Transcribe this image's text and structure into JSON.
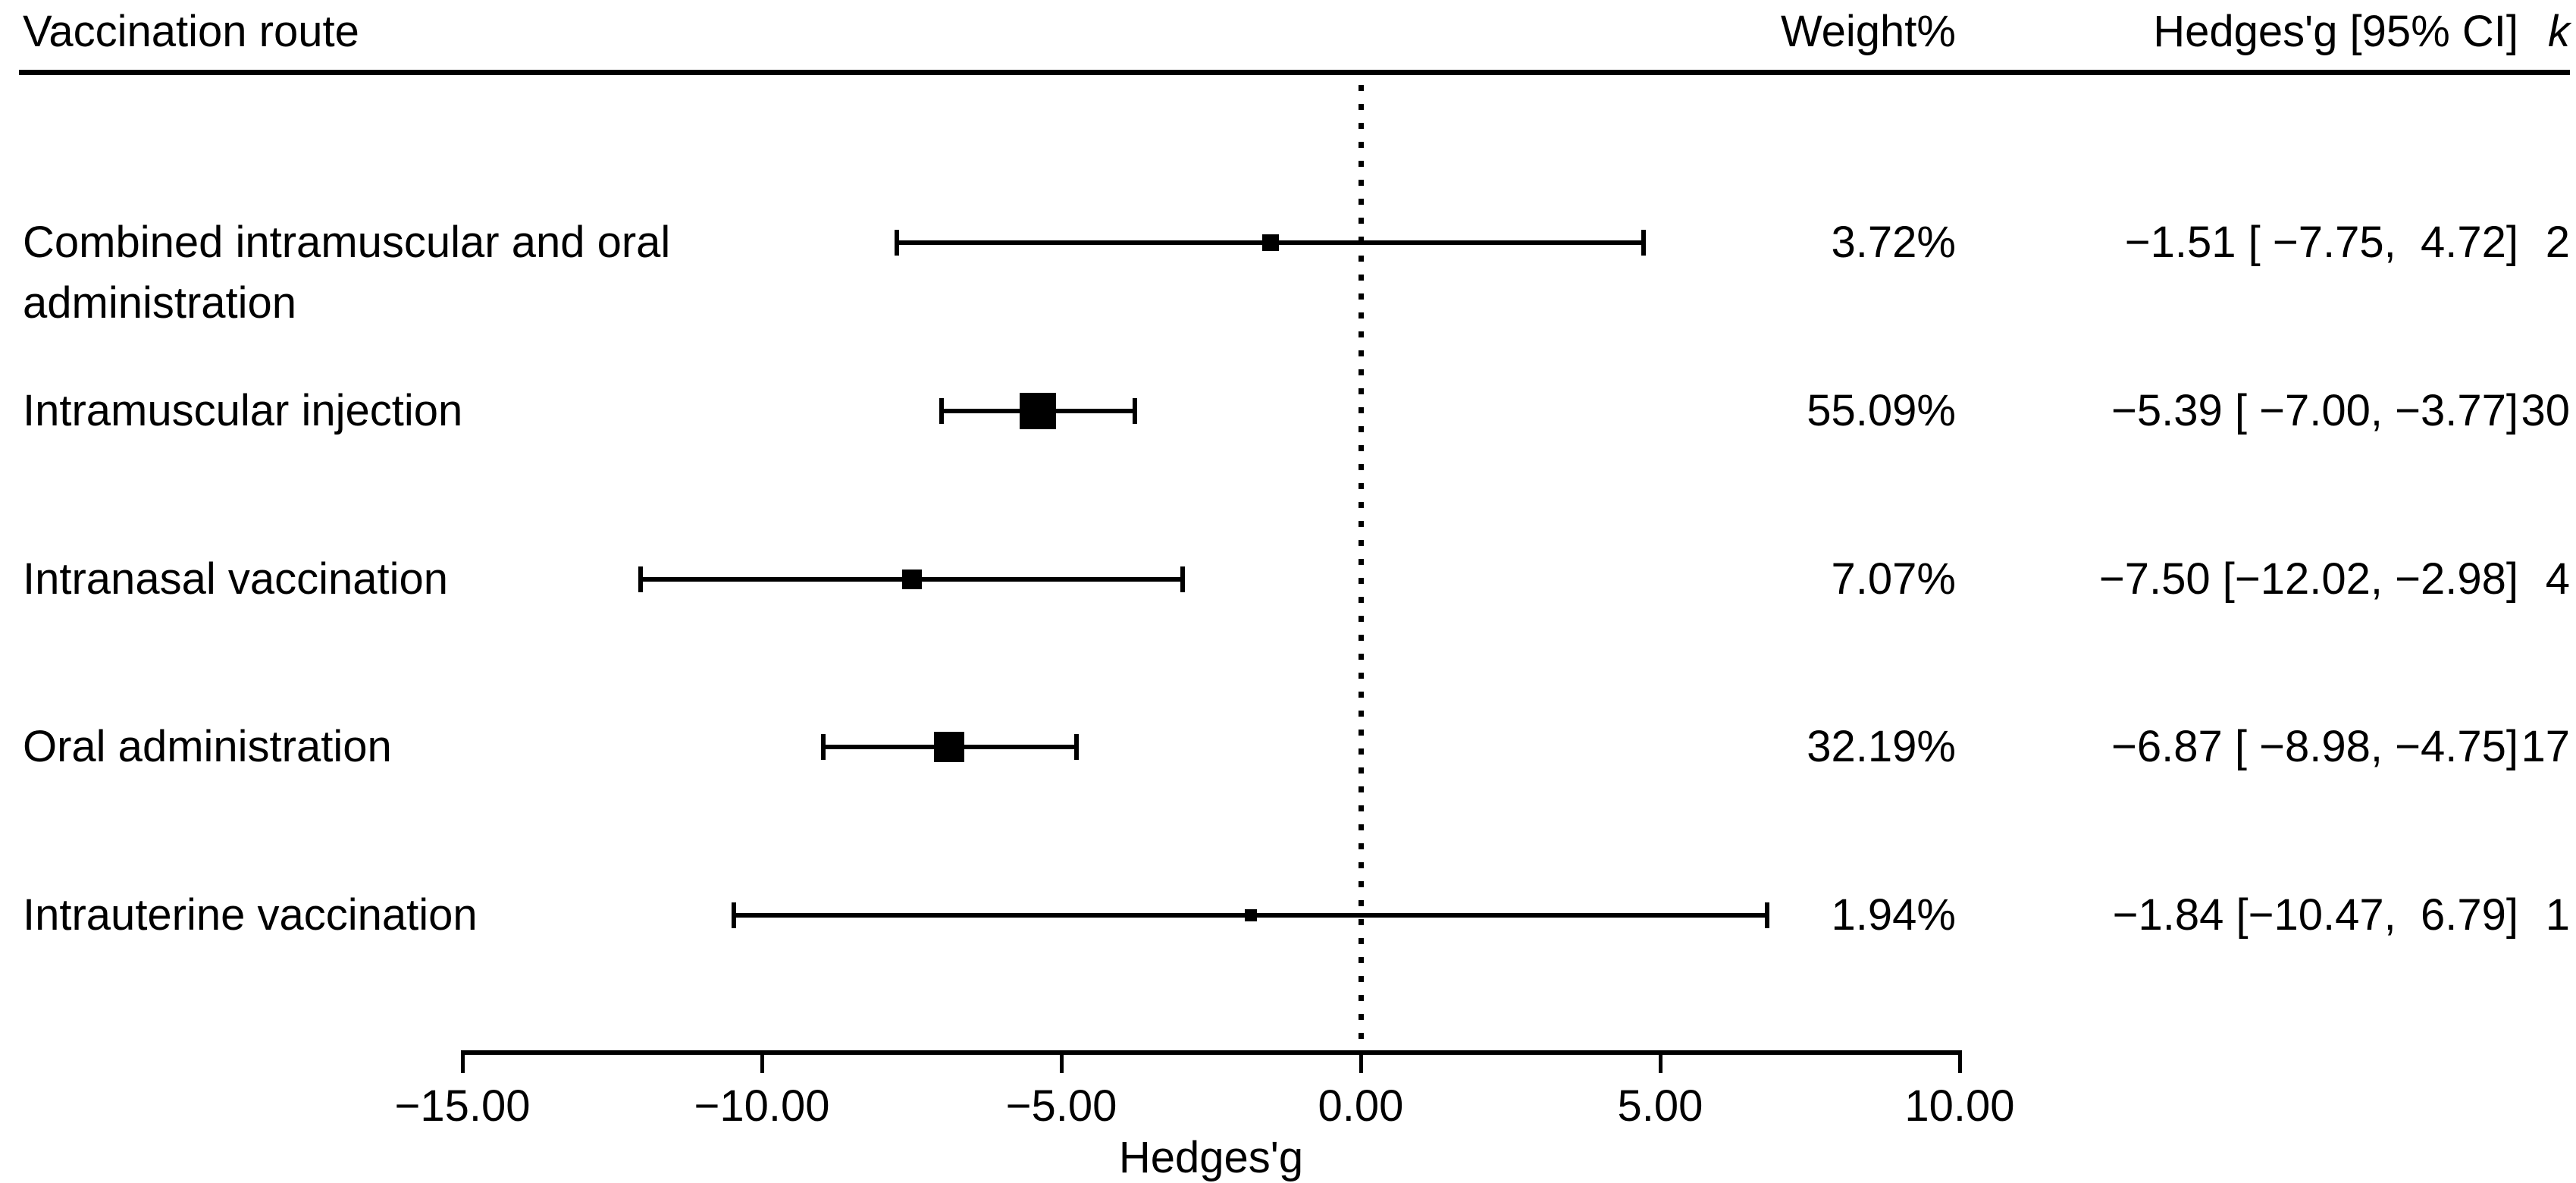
{
  "header": {
    "route_label": "Vaccination route",
    "weight_label": "Weight%",
    "ci_label": "Hedges'g [95% CI]",
    "k_label": "k"
  },
  "chart_data": {
    "type": "forest",
    "title": "",
    "xlabel": "Hedges'g",
    "xlim": [
      -15,
      10
    ],
    "zero_line": 0,
    "x_ticks": [
      -15,
      -10,
      -5,
      0,
      5,
      10
    ],
    "x_tick_labels": [
      "−15.00",
      "−10.00",
      "−5.00",
      "0.00",
      "5.00",
      "10.00"
    ],
    "rows": [
      {
        "label": "Combined intramuscular and oral administration",
        "weight_pct": 3.72,
        "weight_text": "3.72%",
        "estimate": -1.51,
        "ci_low": -7.75,
        "ci_high": 4.72,
        "ci_text": "−1.51 [ −7.75,  4.72]",
        "k": "2",
        "marker_size": 22
      },
      {
        "label": "Intramuscular injection",
        "weight_pct": 55.09,
        "weight_text": "55.09%",
        "estimate": -5.39,
        "ci_low": -7.0,
        "ci_high": -3.77,
        "ci_text": "−5.39 [ −7.00, −3.77]",
        "k": "30",
        "marker_size": 48
      },
      {
        "label": "Intranasal vaccination",
        "weight_pct": 7.07,
        "weight_text": "7.07%",
        "estimate": -7.5,
        "ci_low": -12.02,
        "ci_high": -2.98,
        "ci_text": "−7.50 [−12.02, −2.98]",
        "k": "4",
        "marker_size": 26
      },
      {
        "label": "Oral administration",
        "weight_pct": 32.19,
        "weight_text": "32.19%",
        "estimate": -6.87,
        "ci_low": -8.98,
        "ci_high": -4.75,
        "ci_text": "−6.87 [ −8.98, −4.75]",
        "k": "17",
        "marker_size": 40
      },
      {
        "label": "Intrauterine vaccination",
        "weight_pct": 1.94,
        "weight_text": "1.94%",
        "estimate": -1.84,
        "ci_low": -10.47,
        "ci_high": 6.79,
        "ci_text": "−1.84 [−10.47,  6.79]",
        "k": "1",
        "marker_size": 16
      }
    ]
  },
  "colors": {
    "ink": "#000000",
    "background": "#ffffff"
  }
}
